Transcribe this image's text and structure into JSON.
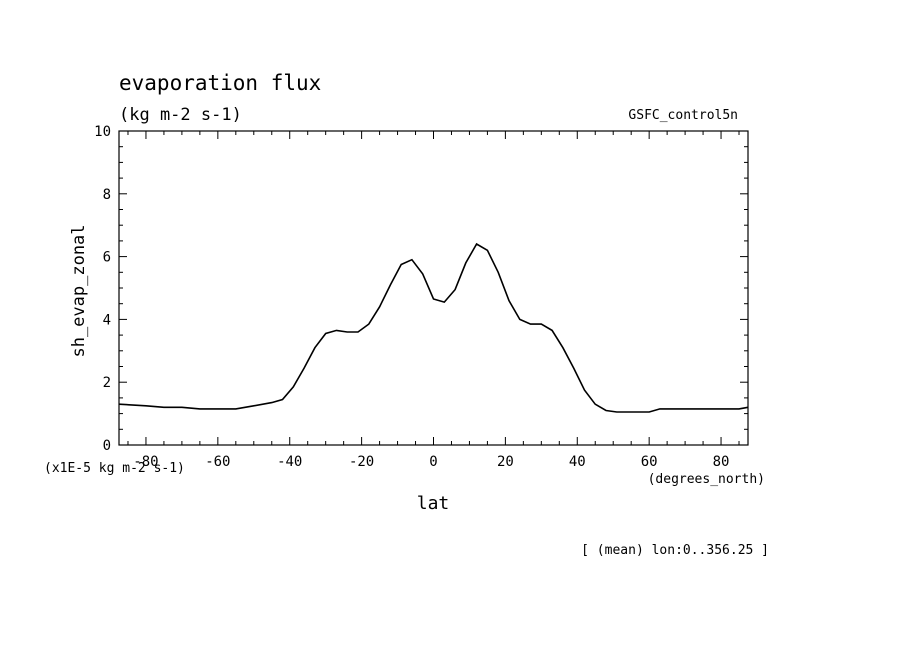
{
  "title": "evaporation flux",
  "units": "(kg m-2 s-1)",
  "dataset": "GSFC_control5n",
  "ylabel": "sh_evap_zonal",
  "xlabel": "lat",
  "y_scale_note": "(x1E-5 kg m-2 s-1)",
  "x_units": "(degrees_north)",
  "footnote": "[ (mean) lon:0..356.25 ]",
  "chart_data": {
    "type": "line",
    "title": "evaporation flux",
    "xlabel": "lat",
    "ylabel": "sh_evap_zonal",
    "xlim": [
      -87.5,
      87.5
    ],
    "ylim": [
      0,
      10
    ],
    "x_ticks": [
      -80,
      -60,
      -40,
      -20,
      0,
      20,
      40,
      60,
      80
    ],
    "y_ticks": [
      0,
      2,
      4,
      6,
      8,
      10
    ],
    "x_tick_labels": [
      "-80",
      "-60",
      "-40",
      "-20",
      "0",
      "20",
      "40",
      "60",
      "80"
    ],
    "y_tick_labels": [
      "0",
      "2",
      "4",
      "6",
      "8",
      "10"
    ],
    "grid": false,
    "series": [
      {
        "x": [
          -87.5,
          -80,
          -75,
          -70,
          -65,
          -60,
          -55,
          -50,
          -45,
          -42,
          -39,
          -36,
          -33,
          -30,
          -27,
          -24,
          -21,
          -18,
          -15,
          -12,
          -9,
          -6,
          -3,
          0,
          3,
          6,
          9,
          12,
          15,
          18,
          21,
          24,
          27,
          30,
          33,
          36,
          39,
          42,
          45,
          48,
          51,
          54,
          57,
          60,
          63,
          66,
          69,
          72,
          75,
          80,
          85,
          87.5
        ],
        "y": [
          1.3,
          1.25,
          1.2,
          1.2,
          1.15,
          1.15,
          1.15,
          1.25,
          1.35,
          1.45,
          1.85,
          2.45,
          3.1,
          3.55,
          3.65,
          3.6,
          3.6,
          3.85,
          4.4,
          5.1,
          5.75,
          5.9,
          5.45,
          4.65,
          4.55,
          4.95,
          5.8,
          6.4,
          6.2,
          5.5,
          4.6,
          4.0,
          3.85,
          3.85,
          3.65,
          3.1,
          2.45,
          1.75,
          1.3,
          1.1,
          1.05,
          1.05,
          1.05,
          1.05,
          1.15,
          1.15,
          1.15,
          1.15,
          1.15,
          1.15,
          1.15,
          1.2
        ]
      }
    ],
    "line_color": "#000000"
  }
}
